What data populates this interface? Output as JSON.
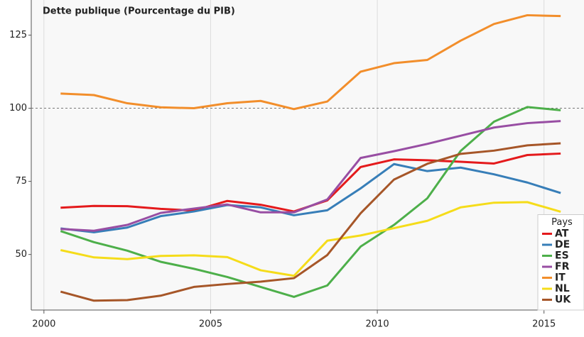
{
  "chart_data": {
    "type": "line",
    "title": "Dette publique (Pourcentage du PIB)",
    "x": [
      2000.5,
      2001.5,
      2002.5,
      2003.5,
      2004.5,
      2005.5,
      2006.5,
      2007.5,
      2008.5,
      2009.5,
      2010.5,
      2011.5,
      2012.5,
      2013.5,
      2014.5,
      2015.5
    ],
    "series": [
      {
        "name": "AT",
        "color": "#e41a1c",
        "values": [
          66,
          66.6,
          66.5,
          65.6,
          65,
          68.3,
          67,
          64.7,
          68.5,
          79.9,
          82.5,
          82.2,
          81.7,
          81.1,
          84,
          84.5
        ]
      },
      {
        "name": "DE",
        "color": "#377eb8",
        "values": [
          58.9,
          57.6,
          59.2,
          63.1,
          64.7,
          66.9,
          66.1,
          63.4,
          65.1,
          72.6,
          80.9,
          78.5,
          79.7,
          77.4,
          74.6,
          71.0
        ]
      },
      {
        "name": "ES",
        "color": "#4daf4a",
        "values": [
          58,
          54.2,
          51.3,
          47.5,
          45.1,
          42.3,
          38.9,
          35.5,
          39.4,
          52.7,
          60.1,
          69.2,
          85.4,
          95.4,
          100.4,
          99.3
        ]
      },
      {
        "name": "FR",
        "color": "#984ea3",
        "values": [
          58.7,
          58.1,
          60.1,
          64.2,
          65.7,
          67.1,
          64.4,
          64.4,
          68.8,
          83,
          85.3,
          87.8,
          90.6,
          93.4,
          94.9,
          95.6
        ]
      },
      {
        "name": "IT",
        "color": "#f28e2b",
        "values": [
          105,
          104.5,
          101.7,
          100.3,
          100,
          101.7,
          102.5,
          99.7,
          102.3,
          112.5,
          115.4,
          116.5,
          123.1,
          128.8,
          131.8,
          131.5
        ]
      },
      {
        "name": "NL",
        "color": "#f5dc1a",
        "values": [
          51.5,
          49,
          48.4,
          49.5,
          49.7,
          49.1,
          44.6,
          42.7,
          54.7,
          56.5,
          59,
          61.5,
          66.1,
          67.7,
          67.9,
          64.6
        ]
      },
      {
        "name": "UK",
        "color": "#a65628",
        "values": [
          37.3,
          34.2,
          34.4,
          35.9,
          38.9,
          39.9,
          40.7,
          41.9,
          49.8,
          64.1,
          75.6,
          81.0,
          84.4,
          85.5,
          87.3,
          88.0
        ]
      }
    ],
    "legend_title": "Pays",
    "legend_position": "bottom-right",
    "reference_line": 100,
    "xlim": [
      1999.62,
      2016.2
    ],
    "xticks": [
      2000,
      2005,
      2010,
      2015
    ],
    "ylim": [
      31,
      137
    ],
    "yticks": [
      50,
      75,
      100,
      125
    ],
    "grid": true
  }
}
